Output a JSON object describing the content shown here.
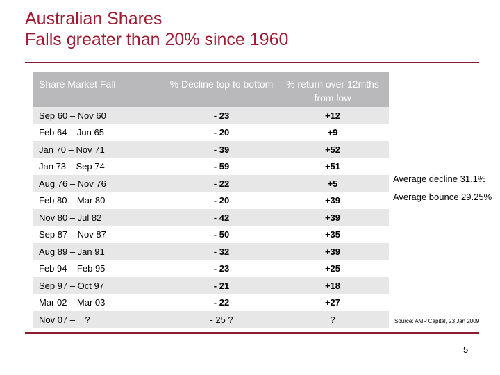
{
  "title": {
    "line1": "Australian Shares",
    "line2": "Falls greater than 20% since 1960"
  },
  "table": {
    "headers": [
      "Share Market Fall",
      "% Decline top to bottom",
      "% return over 12mths from low"
    ],
    "rows": [
      [
        "Sep 60 – Nov 60",
        "- 23",
        "+12"
      ],
      [
        "Feb 64 – Jun 65",
        "- 20",
        "+9"
      ],
      [
        "Jan 70 – Nov 71",
        "- 39",
        "+52"
      ],
      [
        "Jan 73 – Sep 74",
        "- 59",
        "+51"
      ],
      [
        "Aug 76 – Nov 76",
        "- 22",
        "+5"
      ],
      [
        "Feb 80 – Mar 80",
        "- 20",
        "+39"
      ],
      [
        "Nov 80 – Jul 82",
        "- 42",
        "+39"
      ],
      [
        "Sep 87 – Nov 87",
        "- 50",
        "+35"
      ],
      [
        "Aug 89 – Jan 91",
        "- 32",
        "+39"
      ],
      [
        "Feb 94 – Feb 95",
        "- 23",
        "+25"
      ],
      [
        "Sep 97 – Oct 97",
        "- 21",
        "+18"
      ],
      [
        "Mar 02 – Mar 03",
        "- 22",
        "+27"
      ],
      [
        "Nov 07 –    ?",
        "- 25 ?",
        "?"
      ]
    ]
  },
  "summary": {
    "avg_decline": "Average decline  31.1%",
    "avg_bounce": "Average bounce 29.25%"
  },
  "source": "Source: AMP Capital, 23 Jan 2009",
  "page_number": "5",
  "colors": {
    "title": "#9e1b32",
    "rule": "#8c1d2e",
    "header_bg": "#b9b9bb",
    "row_shade": "#e7e7e8"
  }
}
